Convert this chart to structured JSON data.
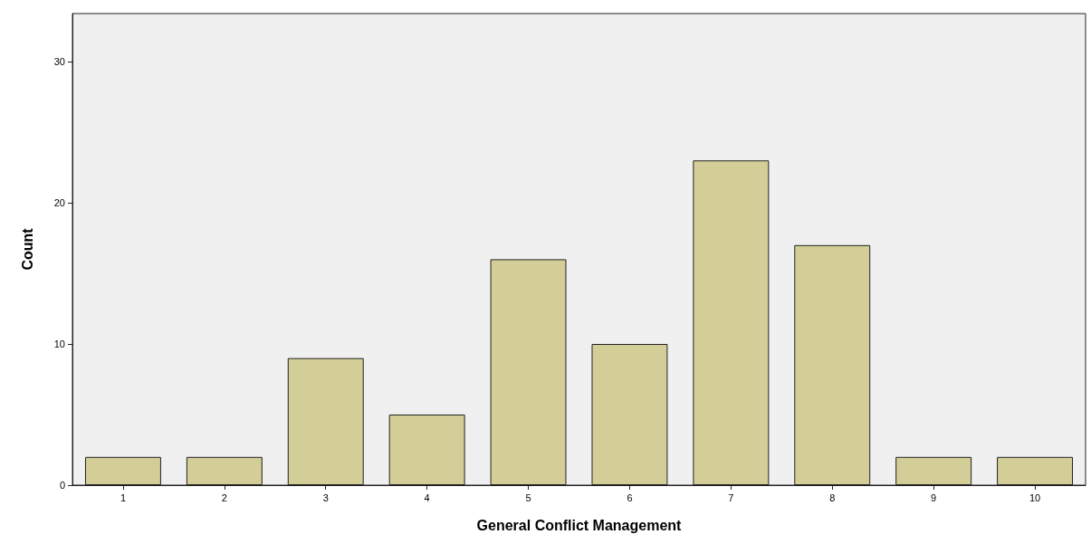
{
  "chart_data": {
    "type": "bar",
    "xlabel": "General Conflict Management",
    "ylabel": "Count",
    "categories": [
      "1",
      "2",
      "3",
      "4",
      "5",
      "6",
      "7",
      "8",
      "9",
      "10"
    ],
    "values": [
      2,
      2,
      9,
      5,
      16,
      10,
      23,
      17,
      2,
      2
    ],
    "color": "#d3ce97",
    "ylim": [
      0,
      33.4
    ],
    "yticks": [
      0,
      10,
      20,
      30
    ],
    "grid": false
  }
}
